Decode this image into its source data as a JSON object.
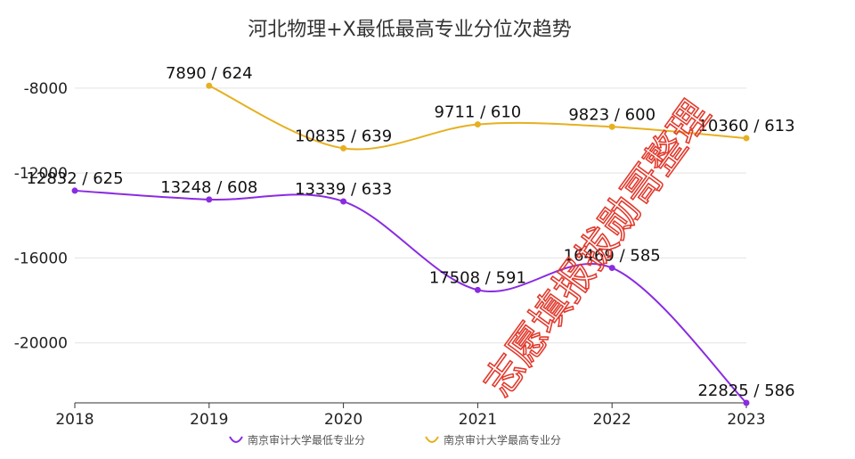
{
  "chart_data": {
    "type": "line",
    "title": "河北物理+X最低最高专业分位次趋势",
    "categories": [
      "2018",
      "2019",
      "2020",
      "2021",
      "2022",
      "2023"
    ],
    "ylim": [
      -22825,
      -7000
    ],
    "yticks": [
      "-8000",
      "-12000",
      "-16000",
      "-20000"
    ],
    "ytick_values": [
      -8000,
      -12000,
      -16000,
      -20000
    ],
    "grid": true,
    "legend_position": "bottom",
    "series": [
      {
        "name": "南京审计大学最低专业分",
        "color": "#8a2be2",
        "values": [
          -12832,
          -13248,
          -13339,
          -17508,
          -16469,
          -22825
        ],
        "labels": [
          "12832 / 625",
          "13248 / 608",
          "13339 / 633",
          "17508 / 591",
          "16469 / 585",
          "22825 / 586"
        ]
      },
      {
        "name": "南京审计大学最高专业分",
        "color": "#e6b020",
        "values": [
          null,
          -7890,
          -10835,
          -9711,
          -9823,
          -10360
        ],
        "labels": [
          "",
          "7890 / 624",
          "10835 / 639",
          "9711 / 610",
          "9823 / 600",
          "10360 / 613"
        ]
      }
    ],
    "watermark": "志愿填报拔勋哥整理"
  }
}
